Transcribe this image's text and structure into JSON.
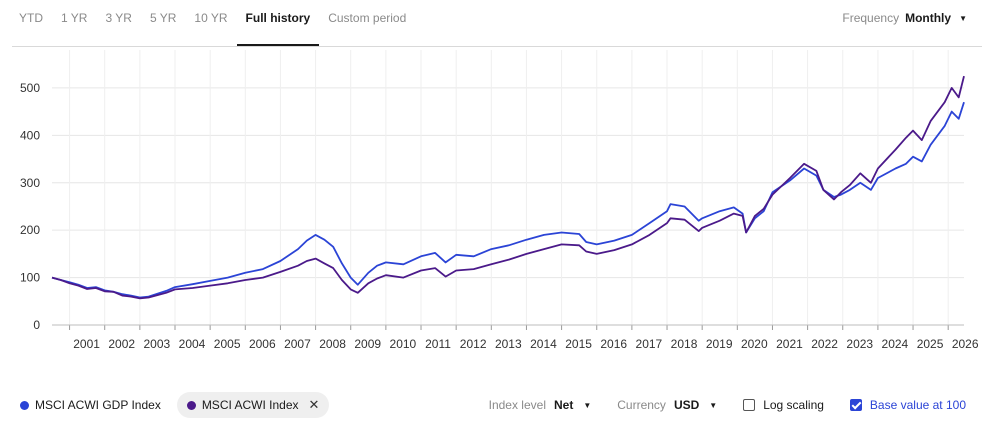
{
  "tabs": [
    "YTD",
    "1 YR",
    "3 YR",
    "5 YR",
    "10 YR",
    "Full history",
    "Custom period"
  ],
  "active_tab": "Full history",
  "frequency": {
    "label": "Frequency",
    "value": "Monthly"
  },
  "legend": [
    {
      "name": "MSCI ACWI GDP Index",
      "color": "#2b44d6"
    },
    {
      "name": "MSCI ACWI Index",
      "color": "#4b1a8a"
    }
  ],
  "controls": {
    "index_level_label": "Index level",
    "index_level_value": "Net",
    "currency_label": "Currency",
    "currency_value": "USD",
    "log_scaling_label": "Log scaling",
    "log_scaling_checked": false,
    "base_value_label": "Base value at 100",
    "base_value_checked": true
  },
  "chart_data": {
    "type": "line",
    "xlim": [
      2000.5,
      2026.45
    ],
    "ylim": [
      0,
      580
    ],
    "y_ticks": [
      0,
      100,
      200,
      300,
      400,
      500
    ],
    "x_ticks": [
      "2001",
      "2002",
      "2003",
      "2004",
      "2005",
      "2006",
      "2007",
      "2008",
      "2009",
      "2010",
      "2011",
      "2012",
      "2013",
      "2014",
      "2015",
      "2016",
      "2017",
      "2018",
      "2019",
      "2020",
      "2021",
      "2022",
      "2023",
      "2024",
      "2025",
      "2026"
    ],
    "grid": true,
    "series": [
      {
        "name": "MSCI ACWI GDP Index",
        "color": "#2b44d6",
        "points": [
          [
            2000.5,
            100
          ],
          [
            2000.75,
            95
          ],
          [
            2001.0,
            90
          ],
          [
            2001.25,
            85
          ],
          [
            2001.5,
            78
          ],
          [
            2001.75,
            80
          ],
          [
            2002.0,
            73
          ],
          [
            2002.25,
            70
          ],
          [
            2002.5,
            65
          ],
          [
            2002.75,
            62
          ],
          [
            2003.0,
            58
          ],
          [
            2003.25,
            60
          ],
          [
            2003.5,
            66
          ],
          [
            2003.75,
            72
          ],
          [
            2004.0,
            80
          ],
          [
            2004.5,
            86
          ],
          [
            2005.0,
            93
          ],
          [
            2005.5,
            100
          ],
          [
            2006.0,
            110
          ],
          [
            2006.5,
            118
          ],
          [
            2007.0,
            135
          ],
          [
            2007.5,
            160
          ],
          [
            2007.75,
            178
          ],
          [
            2008.0,
            190
          ],
          [
            2008.25,
            180
          ],
          [
            2008.5,
            165
          ],
          [
            2008.75,
            130
          ],
          [
            2009.0,
            100
          ],
          [
            2009.2,
            85
          ],
          [
            2009.5,
            110
          ],
          [
            2009.75,
            125
          ],
          [
            2010.0,
            132
          ],
          [
            2010.5,
            128
          ],
          [
            2011.0,
            145
          ],
          [
            2011.4,
            152
          ],
          [
            2011.7,
            132
          ],
          [
            2012.0,
            148
          ],
          [
            2012.5,
            145
          ],
          [
            2013.0,
            160
          ],
          [
            2013.5,
            168
          ],
          [
            2014.0,
            180
          ],
          [
            2014.5,
            190
          ],
          [
            2015.0,
            195
          ],
          [
            2015.5,
            192
          ],
          [
            2015.7,
            175
          ],
          [
            2016.0,
            170
          ],
          [
            2016.5,
            178
          ],
          [
            2017.0,
            190
          ],
          [
            2017.5,
            215
          ],
          [
            2018.0,
            240
          ],
          [
            2018.1,
            255
          ],
          [
            2018.5,
            250
          ],
          [
            2018.9,
            220
          ],
          [
            2019.0,
            225
          ],
          [
            2019.5,
            240
          ],
          [
            2019.9,
            248
          ],
          [
            2020.15,
            235
          ],
          [
            2020.25,
            195
          ],
          [
            2020.5,
            225
          ],
          [
            2020.75,
            240
          ],
          [
            2021.0,
            280
          ],
          [
            2021.5,
            305
          ],
          [
            2021.9,
            330
          ],
          [
            2022.25,
            315
          ],
          [
            2022.45,
            285
          ],
          [
            2022.75,
            270
          ],
          [
            2022.95,
            275
          ],
          [
            2023.2,
            285
          ],
          [
            2023.5,
            300
          ],
          [
            2023.8,
            285
          ],
          [
            2024.0,
            310
          ],
          [
            2024.5,
            330
          ],
          [
            2024.8,
            340
          ],
          [
            2025.0,
            355
          ],
          [
            2025.25,
            345
          ],
          [
            2025.5,
            380
          ],
          [
            2025.9,
            420
          ],
          [
            2026.1,
            450
          ],
          [
            2026.3,
            435
          ],
          [
            2026.45,
            470
          ]
        ]
      },
      {
        "name": "MSCI ACWI Index",
        "color": "#4b1a8a",
        "points": [
          [
            2000.5,
            100
          ],
          [
            2000.75,
            95
          ],
          [
            2001.0,
            88
          ],
          [
            2001.25,
            83
          ],
          [
            2001.5,
            76
          ],
          [
            2001.75,
            78
          ],
          [
            2002.0,
            71
          ],
          [
            2002.25,
            70
          ],
          [
            2002.5,
            62
          ],
          [
            2002.75,
            60
          ],
          [
            2003.0,
            56
          ],
          [
            2003.25,
            58
          ],
          [
            2003.5,
            63
          ],
          [
            2003.75,
            68
          ],
          [
            2004.0,
            75
          ],
          [
            2004.5,
            78
          ],
          [
            2005.0,
            83
          ],
          [
            2005.5,
            88
          ],
          [
            2006.0,
            95
          ],
          [
            2006.5,
            100
          ],
          [
            2007.0,
            112
          ],
          [
            2007.5,
            125
          ],
          [
            2007.75,
            135
          ],
          [
            2008.0,
            140
          ],
          [
            2008.25,
            130
          ],
          [
            2008.5,
            120
          ],
          [
            2008.75,
            95
          ],
          [
            2009.0,
            75
          ],
          [
            2009.2,
            68
          ],
          [
            2009.5,
            88
          ],
          [
            2009.75,
            98
          ],
          [
            2010.0,
            105
          ],
          [
            2010.5,
            100
          ],
          [
            2011.0,
            115
          ],
          [
            2011.4,
            120
          ],
          [
            2011.7,
            102
          ],
          [
            2012.0,
            115
          ],
          [
            2012.5,
            118
          ],
          [
            2013.0,
            128
          ],
          [
            2013.5,
            138
          ],
          [
            2014.0,
            150
          ],
          [
            2014.5,
            160
          ],
          [
            2015.0,
            170
          ],
          [
            2015.5,
            168
          ],
          [
            2015.7,
            155
          ],
          [
            2016.0,
            150
          ],
          [
            2016.5,
            158
          ],
          [
            2017.0,
            170
          ],
          [
            2017.5,
            190
          ],
          [
            2018.0,
            215
          ],
          [
            2018.1,
            225
          ],
          [
            2018.5,
            222
          ],
          [
            2018.9,
            198
          ],
          [
            2019.0,
            205
          ],
          [
            2019.5,
            220
          ],
          [
            2019.9,
            235
          ],
          [
            2020.15,
            230
          ],
          [
            2020.25,
            195
          ],
          [
            2020.5,
            230
          ],
          [
            2020.75,
            245
          ],
          [
            2021.0,
            275
          ],
          [
            2021.5,
            310
          ],
          [
            2021.9,
            340
          ],
          [
            2022.25,
            325
          ],
          [
            2022.45,
            285
          ],
          [
            2022.75,
            265
          ],
          [
            2022.95,
            280
          ],
          [
            2023.2,
            295
          ],
          [
            2023.5,
            320
          ],
          [
            2023.8,
            300
          ],
          [
            2024.0,
            330
          ],
          [
            2024.5,
            370
          ],
          [
            2024.8,
            395
          ],
          [
            2025.0,
            410
          ],
          [
            2025.25,
            390
          ],
          [
            2025.5,
            430
          ],
          [
            2025.9,
            470
          ],
          [
            2026.1,
            500
          ],
          [
            2026.3,
            480
          ],
          [
            2026.45,
            525
          ]
        ]
      }
    ]
  }
}
